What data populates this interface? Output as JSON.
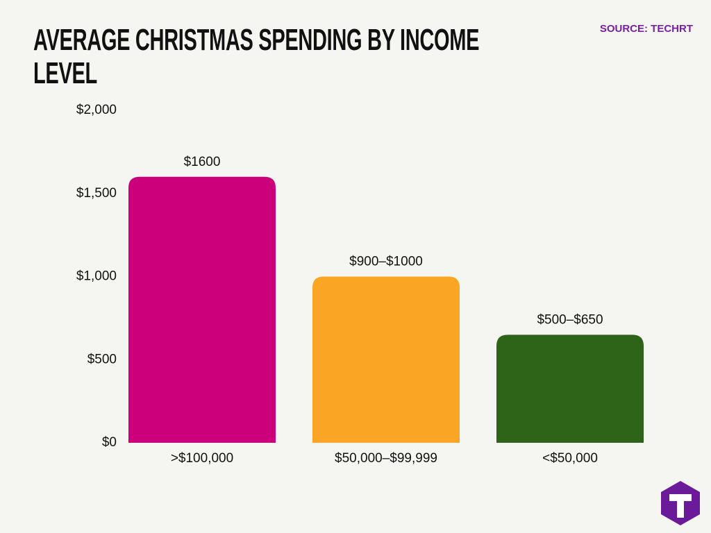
{
  "chart_data": {
    "type": "bar",
    "title": "AVERAGE CHRISTMAS SPENDING BY INCOME LEVEL",
    "source": "SOURCE: TECHRT",
    "categories": [
      ">$100,000",
      "$50,000–$99,999",
      "<$50,000"
    ],
    "values": [
      1600,
      1000,
      650
    ],
    "value_labels": [
      "$1600",
      "$900–$1000",
      "$500–$650"
    ],
    "colors": [
      "#cc007a",
      "#fba524",
      "#2e6418"
    ],
    "ylim": [
      0,
      2000
    ],
    "yticks": [
      {
        "value": 0,
        "label": "$0"
      },
      {
        "value": 500,
        "label": "$500"
      },
      {
        "value": 1000,
        "label": "$1,000"
      },
      {
        "value": 1500,
        "label": "$1,500"
      },
      {
        "value": 2000,
        "label": "$2,000"
      }
    ],
    "grid": false
  }
}
